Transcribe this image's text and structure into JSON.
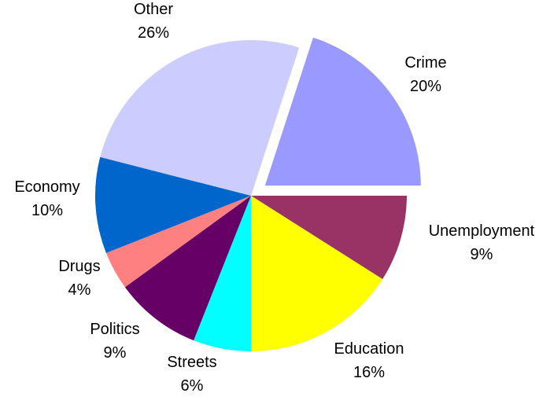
{
  "chart_data": {
    "type": "pie",
    "start_angle_deg": 18,
    "direction": "clockwise",
    "exploded": [
      "Crime"
    ],
    "slices": [
      {
        "name": "Crime",
        "value": 20,
        "label": "Crime",
        "pct_label": "20%",
        "color": "#9999FF"
      },
      {
        "name": "Unemployment",
        "value": 9,
        "label": "Unemployment",
        "pct_label": "9%",
        "color": "#993366"
      },
      {
        "name": "Education",
        "value": 16,
        "label": "Education",
        "pct_label": "16%",
        "color": "#FFFF00"
      },
      {
        "name": "Streets",
        "value": 6,
        "label": "Streets",
        "pct_label": "6%",
        "color": "#00FFFF"
      },
      {
        "name": "Politics",
        "value": 9,
        "label": "Politics",
        "pct_label": "9%",
        "color": "#660066"
      },
      {
        "name": "Drugs",
        "value": 4,
        "label": "Drugs",
        "pct_label": "4%",
        "color": "#FF8080"
      },
      {
        "name": "Economy",
        "value": 10,
        "label": "Economy",
        "pct_label": "10%",
        "color": "#0066CC"
      },
      {
        "name": "Other",
        "value": 26,
        "label": "Other",
        "pct_label": "26%",
        "color": "#CCCCFF"
      }
    ]
  }
}
